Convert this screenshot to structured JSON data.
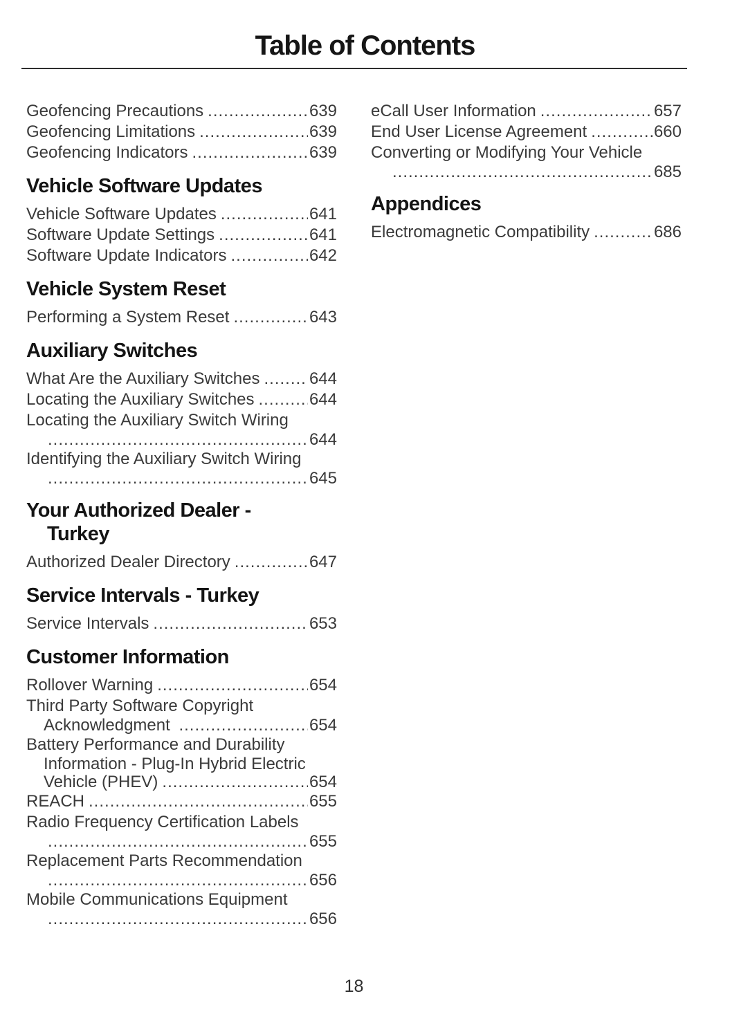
{
  "page": {
    "title": "Table of Contents",
    "page_number": "18"
  },
  "columns": [
    {
      "sections": [
        {
          "heading_lines": [],
          "items": [
            {
              "lines": [
                "Geofencing Precautions"
              ],
              "page": "639"
            },
            {
              "lines": [
                "Geofencing Limitations"
              ],
              "page": "639"
            },
            {
              "lines": [
                "Geofencing Indicators"
              ],
              "page": "639"
            }
          ]
        },
        {
          "heading_lines": [
            "Vehicle Software Updates"
          ],
          "items": [
            {
              "lines": [
                "Vehicle Software Updates"
              ],
              "page": "641"
            },
            {
              "lines": [
                "Software Update Settings"
              ],
              "page": "641"
            },
            {
              "lines": [
                "Software Update Indicators"
              ],
              "page": "642"
            }
          ]
        },
        {
          "heading_lines": [
            "Vehicle System Reset"
          ],
          "items": [
            {
              "lines": [
                "Performing a System Reset"
              ],
              "page": "643"
            }
          ]
        },
        {
          "heading_lines": [
            "Auxiliary Switches"
          ],
          "items": [
            {
              "lines": [
                "What Are the Auxiliary Switches"
              ],
              "page": "644"
            },
            {
              "lines": [
                "Locating the Auxiliary Switches"
              ],
              "page": "644"
            },
            {
              "lines": [
                "Locating the Auxiliary Switch Wiring",
                ""
              ],
              "page": "644"
            },
            {
              "lines": [
                "Identifying the Auxiliary Switch Wiring",
                ""
              ],
              "page": "645"
            }
          ]
        },
        {
          "heading_lines": [
            "Your Authorized Dealer -",
            "Turkey"
          ],
          "items": [
            {
              "lines": [
                "Authorized Dealer Directory"
              ],
              "page": "647"
            }
          ]
        },
        {
          "heading_lines": [
            "Service Intervals - Turkey"
          ],
          "items": [
            {
              "lines": [
                "Service Intervals"
              ],
              "page": "653"
            }
          ]
        },
        {
          "heading_lines": [
            "Customer Information"
          ],
          "items": [
            {
              "lines": [
                "Rollover Warning"
              ],
              "page": "654"
            },
            {
              "lines": [
                "Third Party Software Copyright",
                "Acknowledgment "
              ],
              "page": "654"
            },
            {
              "lines": [
                "Battery Performance and Durability",
                "Information - Plug-In Hybrid Electric",
                "Vehicle (PHEV)"
              ],
              "page": "654"
            },
            {
              "lines": [
                "REACH"
              ],
              "page": "655"
            },
            {
              "lines": [
                "Radio Frequency Certification Labels",
                ""
              ],
              "page": "655"
            },
            {
              "lines": [
                "Replacement Parts Recommendation",
                ""
              ],
              "page": "656"
            },
            {
              "lines": [
                "Mobile Communications Equipment",
                ""
              ],
              "page": "656"
            }
          ]
        }
      ]
    },
    {
      "sections": [
        {
          "heading_lines": [],
          "items": [
            {
              "lines": [
                "eCall User Information"
              ],
              "page": "657"
            },
            {
              "lines": [
                "End User License Agreement"
              ],
              "page": "660"
            },
            {
              "lines": [
                "Converting or Modifying Your Vehicle",
                ""
              ],
              "page": "685"
            }
          ]
        },
        {
          "heading_lines": [
            "Appendices"
          ],
          "items": [
            {
              "lines": [
                "Electromagnetic Compatibility"
              ],
              "page": "686"
            }
          ]
        }
      ]
    }
  ]
}
